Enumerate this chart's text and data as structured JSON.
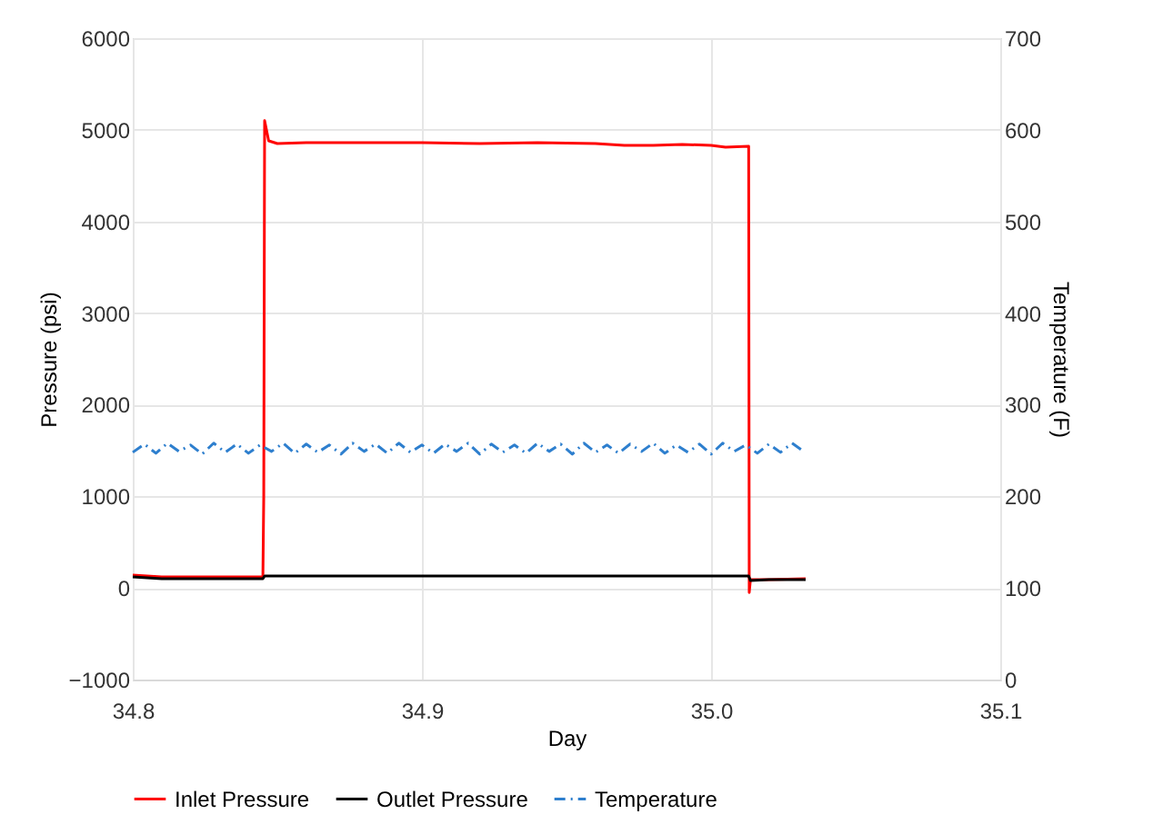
{
  "chart_data": {
    "type": "line",
    "xlabel": "Day",
    "ylabel": "Pressure (psi)",
    "y2label": "Temperature (F)",
    "xlim": [
      34.8,
      35.1
    ],
    "xticks": [
      {
        "value": 34.8,
        "label": "34.8"
      },
      {
        "value": 34.9,
        "label": "34.9"
      },
      {
        "value": 35.0,
        "label": "35.0"
      },
      {
        "value": 35.1,
        "label": "35.1"
      }
    ],
    "ylim": [
      -1000,
      6000
    ],
    "yticks": [
      -1000,
      0,
      1000,
      2000,
      3000,
      4000,
      5000,
      6000
    ],
    "y2lim": [
      0,
      700
    ],
    "y2ticks": [
      0,
      100,
      200,
      300,
      400,
      500,
      600,
      700
    ],
    "grid": true,
    "legend": "bottom",
    "marker": "none",
    "series": [
      {
        "name": "Inlet Pressure",
        "color": "#ff0000",
        "line_style": "solid",
        "x": [
          34.8,
          34.81,
          34.82,
          34.83,
          34.845,
          34.8453,
          34.8456,
          34.847,
          34.85,
          34.86,
          34.88,
          34.9,
          34.92,
          34.94,
          34.96,
          34.97,
          34.98,
          34.99,
          35.0,
          35.005,
          35.013,
          35.0132,
          35.0136,
          35.02,
          35.0327
        ],
        "values": [
          140,
          120,
          120,
          120,
          120,
          1000,
          5100,
          4880,
          4850,
          4860,
          4860,
          4860,
          4850,
          4860,
          4850,
          4830,
          4830,
          4840,
          4830,
          4810,
          4820,
          -50,
          90,
          90,
          100
        ]
      },
      {
        "name": "Outlet Pressure",
        "color": "#000000",
        "line_style": "solid",
        "x": [
          34.8,
          34.81,
          34.83,
          34.845,
          34.8456,
          34.87,
          34.9,
          34.93,
          34.96,
          34.99,
          35.013,
          35.0136,
          35.02,
          35.0327
        ],
        "values": [
          120,
          100,
          100,
          100,
          130,
          130,
          130,
          130,
          130,
          130,
          130,
          80,
          90,
          90
        ]
      },
      {
        "name": "Temperature",
        "color": "#2e7fce",
        "line_style": "dashed",
        "axis": "y2",
        "x": [
          34.8,
          34.804,
          34.808,
          34.812,
          34.816,
          34.82,
          34.824,
          34.828,
          34.832,
          34.836,
          34.84,
          34.844,
          34.848,
          34.852,
          34.856,
          34.86,
          34.864,
          34.868,
          34.872,
          34.876,
          34.88,
          34.884,
          34.888,
          34.892,
          34.896,
          34.9,
          34.904,
          34.908,
          34.912,
          34.916,
          34.92,
          34.924,
          34.928,
          34.932,
          34.936,
          34.94,
          34.944,
          34.948,
          34.952,
          34.956,
          34.96,
          34.964,
          34.968,
          34.972,
          34.976,
          34.98,
          34.984,
          34.988,
          34.992,
          34.996,
          35.0,
          35.004,
          35.008,
          35.012,
          35.016,
          35.02,
          35.024,
          35.028,
          35.032
        ],
        "values": [
          248,
          257,
          247,
          258,
          249,
          256,
          246,
          258,
          248,
          257,
          247,
          256,
          249,
          258,
          247,
          257,
          248,
          256,
          246,
          258,
          249,
          257,
          247,
          258,
          248,
          256,
          247,
          257,
          249,
          258,
          246,
          257,
          248,
          256,
          247,
          258,
          249,
          257,
          246,
          258,
          248,
          256,
          247,
          257,
          249,
          258,
          247,
          256,
          248,
          257,
          246,
          258,
          249,
          256,
          247,
          257,
          248,
          258,
          249
        ]
      }
    ]
  }
}
